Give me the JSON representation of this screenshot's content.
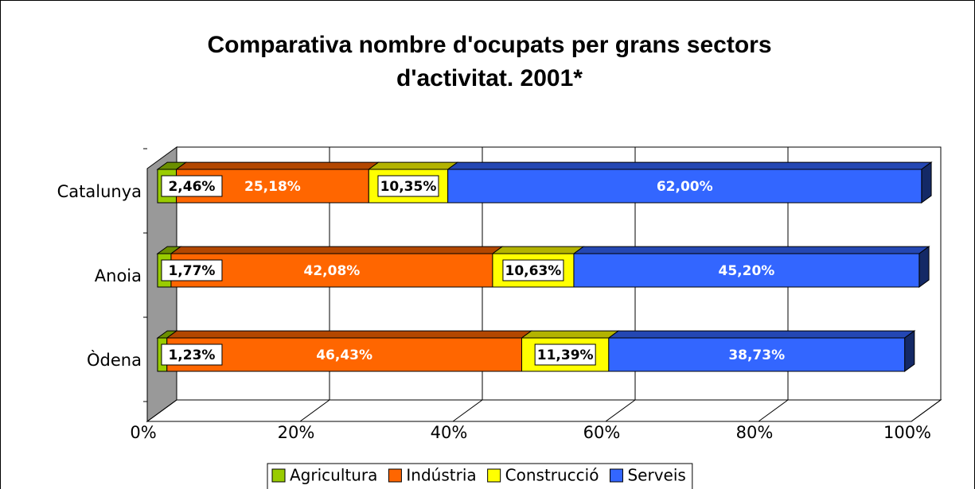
{
  "chart_data": {
    "type": "bar3d_stacked_horizontal",
    "title": [
      "Comparativa nombre d'ocupats per grans sectors",
      "d'activitat. 2001*"
    ],
    "categories": [
      "Catalunya",
      "Anoia",
      "Òdena"
    ],
    "series": [
      {
        "name": "Agricultura",
        "color": "#99cc00",
        "values": [
          2.46,
          1.77,
          1.23
        ],
        "value_labels": [
          "2,46%",
          "1,77%",
          "1,23%"
        ]
      },
      {
        "name": "Indústria",
        "color": "#ff6600",
        "values": [
          25.18,
          42.08,
          46.43
        ],
        "value_labels": [
          "25,18%",
          "42,08%",
          "46,43%"
        ]
      },
      {
        "name": "Construcció",
        "color": "#ffff00",
        "values": [
          10.35,
          10.63,
          11.39
        ],
        "value_labels": [
          "10,35%",
          "10,63%",
          "11,39%"
        ]
      },
      {
        "name": "Serveis",
        "color": "#3366ff",
        "values": [
          62.0,
          45.2,
          38.73
        ],
        "value_labels": [
          "62,00%",
          "45,20%",
          "38,73%"
        ]
      }
    ],
    "xlim": [
      0,
      100
    ],
    "xticks": [
      {
        "value": 0,
        "label": "0%"
      },
      {
        "value": 20,
        "label": "20%"
      },
      {
        "value": 40,
        "label": "40%"
      },
      {
        "value": 60,
        "label": "60%"
      },
      {
        "value": 80,
        "label": "80%"
      },
      {
        "value": 100,
        "label": "100%"
      }
    ],
    "grid": true,
    "legend": "bottom"
  }
}
